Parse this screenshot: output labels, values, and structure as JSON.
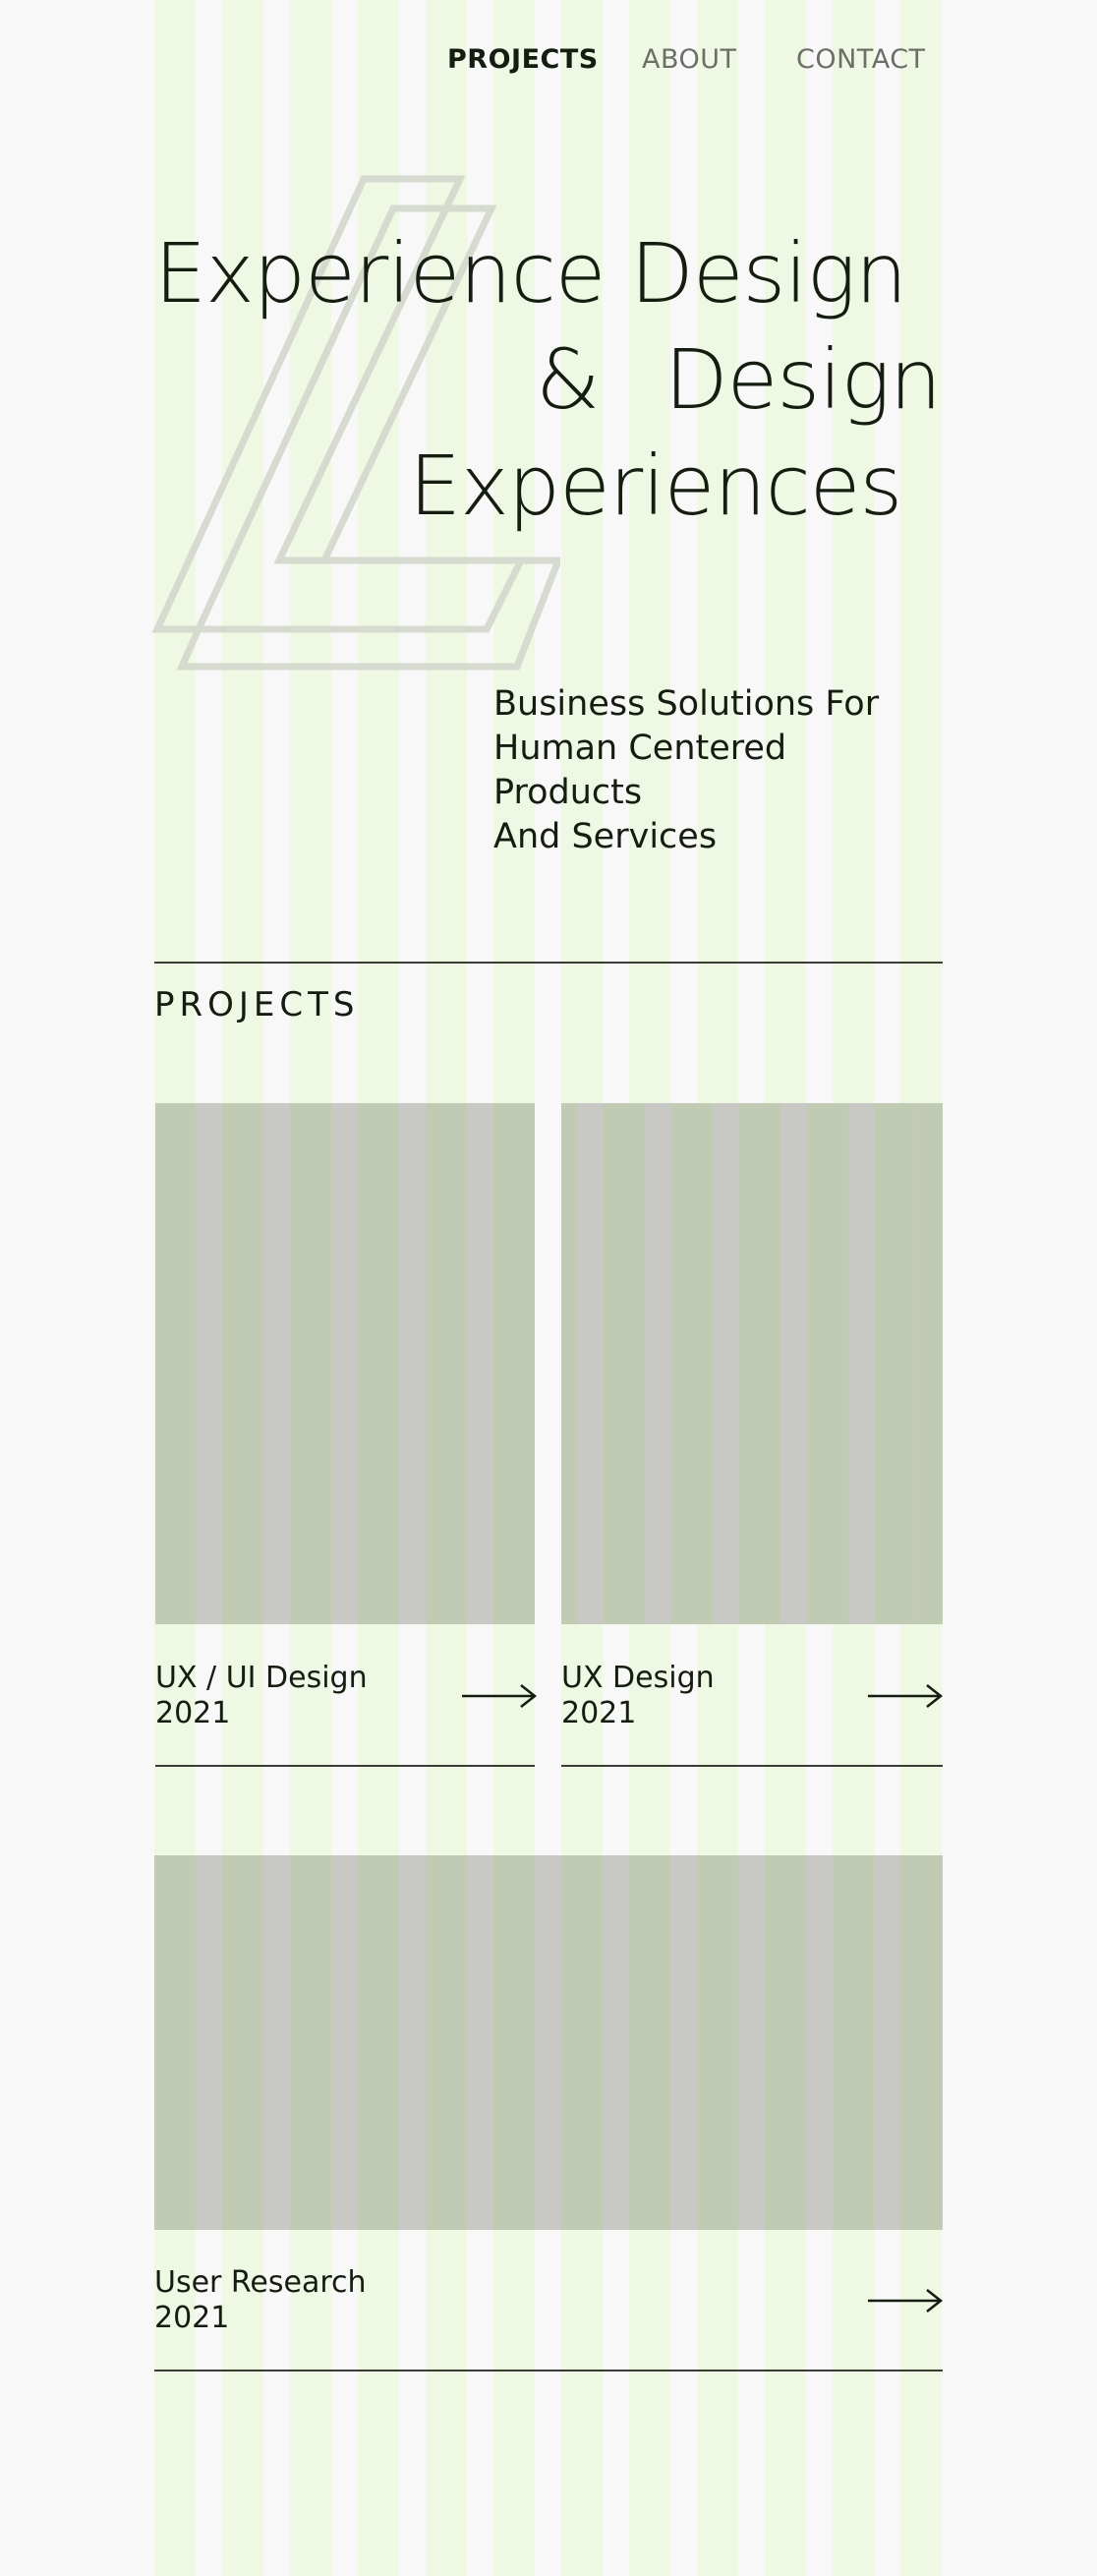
{
  "nav": {
    "projects": "PROJECTS",
    "about": "ABOUT",
    "contact": "CONTACT"
  },
  "hero": {
    "line1": "Experience Design",
    "line2_amp": "&",
    "line2_word": "Design",
    "line3": "Experiences",
    "tagline_1": "Business Solutions For",
    "tagline_2": "Human Centered Products",
    "tagline_3": "And Services"
  },
  "projects": {
    "section_title": "PROJECTS",
    "items": [
      {
        "title": "UX / UI Design",
        "year": "2021"
      },
      {
        "title": "UX Design",
        "year": "2021"
      },
      {
        "title": "User Research",
        "year": "2021"
      }
    ]
  },
  "icons": {
    "logo": "logo-mark",
    "arrow": "arrow-right-icon"
  },
  "colors": {
    "background": "#f8f8f8",
    "grid_stripe": "#eef8e3",
    "text": "#151c10",
    "nav_inactive": "#6b6f66",
    "image_green": "#c1cab3",
    "image_gray": "#c8c9c4",
    "logo_stroke": "#d6dacf"
  }
}
